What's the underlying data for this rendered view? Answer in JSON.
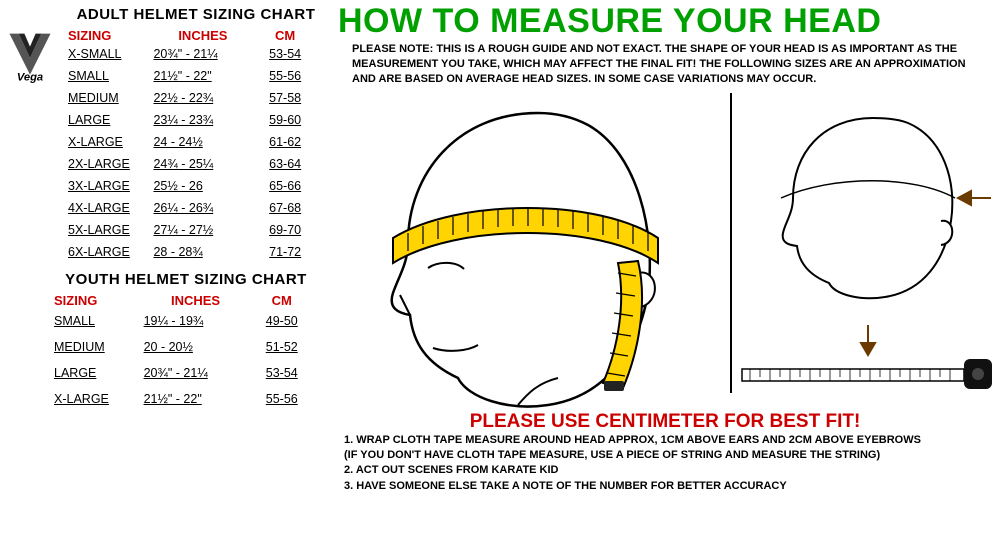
{
  "left": {
    "adult_title": "ADULT HELMET SIZING CHART",
    "youth_title": "YOUTH HELMET SIZING CHART",
    "cols": {
      "sizing": "SIZING",
      "inches": "INCHES",
      "cm": "CM"
    },
    "adult_rows": [
      {
        "s": "X-SMALL",
        "in": "20¾\" - 21¼",
        "cm": "53-54"
      },
      {
        "s": "SMALL",
        "in": "21½\" - 22\"",
        "cm": "55-56"
      },
      {
        "s": "MEDIUM",
        "in": "22½  - 22¾",
        "cm": "57-58"
      },
      {
        "s": "LARGE",
        "in": "23¼  - 23¾",
        "cm": "59-60"
      },
      {
        "s": "X-LARGE",
        "in": "24    - 24½",
        "cm": "61-62"
      },
      {
        "s": "2X-LARGE",
        "in": "24¾ - 25¼",
        "cm": "63-64"
      },
      {
        "s": "3X-LARGE",
        "in": "25½ - 26",
        "cm": "65-66"
      },
      {
        "s": "4X-LARGE",
        "in": "26¼ - 26¾",
        "cm": "67-68"
      },
      {
        "s": "5X-LARGE",
        "in": "27¼  - 27½",
        "cm": "69-70"
      },
      {
        "s": "6X-LARGE",
        "in": "28    - 28¾",
        "cm": "71-72"
      }
    ],
    "youth_rows": [
      {
        "s": "SMALL",
        "in": "19¼ -  19¾",
        "cm": "49-50"
      },
      {
        "s": "MEDIUM",
        "in": "20    -  20½",
        "cm": "51-52"
      },
      {
        "s": "LARGE",
        "in": "20¾\" - 21¼",
        "cm": "53-54"
      },
      {
        "s": "X-LARGE",
        "in": "21½\" - 22\"",
        "cm": "55-56"
      }
    ]
  },
  "right": {
    "title": "HOW TO MEASURE YOUR HEAD",
    "note": "PLEASE NOTE:  THIS IS A ROUGH GUIDE AND NOT EXACT.  THE SHAPE OF YOUR HEAD IS AS IMPORTANT AS THE MEASUREMENT YOU TAKE, WHICH MAY AFFECT THE FINAL FIT!  THE FOLLOWING SIZES ARE AN APPROXIMATION AND ARE BASED ON AVERAGE HEAD SIZES.  IN SOME CASE VARIATIONS MAY OCCUR.",
    "tagline": "PLEASE USE CENTIMETER FOR BEST FIT!",
    "instructions": [
      "1.  WRAP CLOTH TAPE MEASURE AROUND HEAD APPROX, 1CM ABOVE EARS AND 2CM ABOVE EYEBROWS",
      "     (IF YOU DON'T HAVE CLOTH TAPE MEASURE, USE A PIECE OF STRING AND MEASURE THE STRING)",
      "2.  ACT OUT SCENES FROM KARATE KID",
      "3.  HAVE SOMEONE ELSE TAKE A NOTE OF THE NUMBER FOR BETTER ACCURACY"
    ]
  },
  "colors": {
    "green": "#00a000",
    "red": "#c00000",
    "tape": "#ffd400",
    "tape_marks": "#000000"
  }
}
